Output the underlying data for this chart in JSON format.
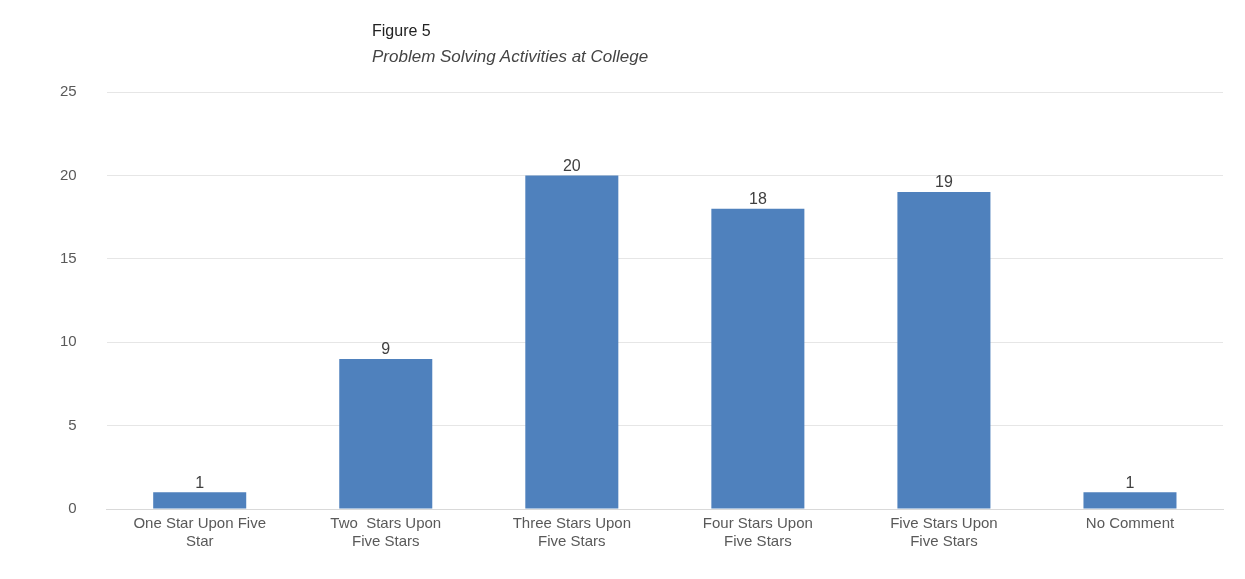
{
  "chart_data": {
    "type": "bar",
    "title": "Figure 5",
    "subtitle": "Problem Solving Activities at College",
    "categories": [
      "One Star Upon Five Star",
      "Two  Stars Upon Five Stars",
      "Three Stars Upon Five Stars",
      "Four Stars Upon Five Stars",
      "Five Stars Upon Five Stars",
      "No Comment"
    ],
    "values": [
      1,
      9,
      20,
      18,
      19,
      1
    ],
    "color": "#4f81bd",
    "ylim": [
      0,
      25
    ],
    "yticks": [
      0,
      5,
      10,
      15,
      20,
      25
    ],
    "grid": "y",
    "data_labels": true
  }
}
